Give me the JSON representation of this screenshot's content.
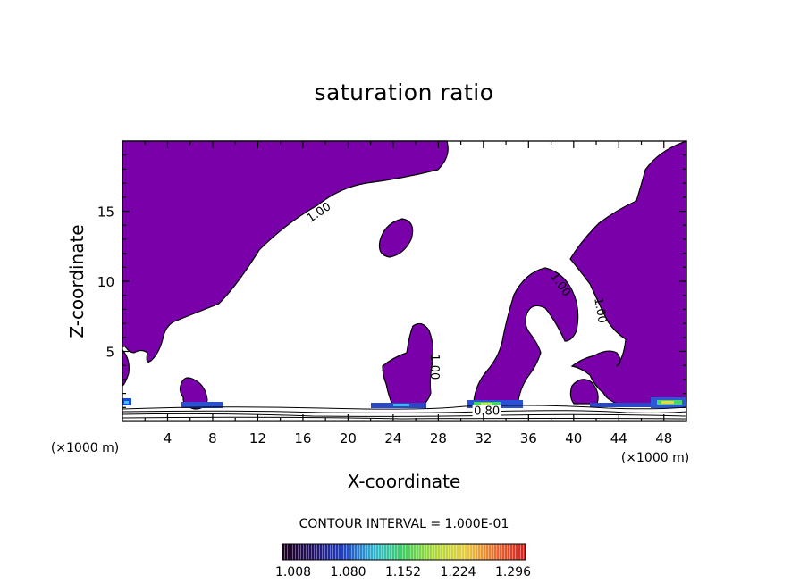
{
  "chart_data": {
    "type": "contour",
    "title": "saturation ratio",
    "xlabel": "X-coordinate",
    "ylabel": "Z-coordinate",
    "x_unit": "(×1000 m)",
    "xlim": [
      0,
      50
    ],
    "ylim": [
      0,
      20
    ],
    "x_ticks": [
      4,
      8,
      12,
      16,
      20,
      24,
      28,
      32,
      36,
      40,
      44,
      48
    ],
    "y_ticks": [
      5,
      10,
      15
    ],
    "contour_interval_label": "CONTOUR INTERVAL = 1.000E-01",
    "contour_labels": [
      {
        "text": "1.00",
        "x": 17.5,
        "z": 14.8,
        "angle": -34
      },
      {
        "text": "1.00",
        "x": 38.7,
        "z": 9.7,
        "angle": 55
      },
      {
        "text": "1.00",
        "x": 42.2,
        "z": 7.9,
        "angle": 80
      },
      {
        "text": "1.00",
        "x": 27.5,
        "z": 3.9,
        "angle": 90
      },
      {
        "text": "0.80",
        "x": 32.3,
        "z": 0.6,
        "angle": 0
      }
    ],
    "colorbar": {
      "tick_labels": [
        "1.008",
        "1.080",
        "1.152",
        "1.224",
        "1.296"
      ],
      "range": [
        1.008,
        1.296
      ]
    },
    "colors": {
      "fill": "#7a00aa",
      "line": "#000000",
      "background": "#ffffff"
    }
  }
}
